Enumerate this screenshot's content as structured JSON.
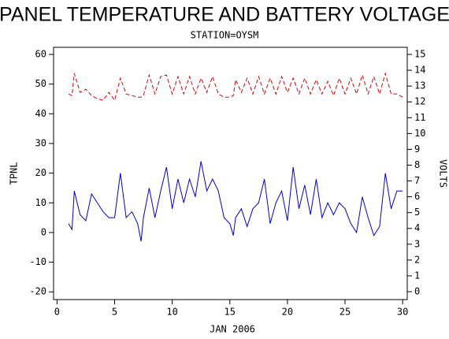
{
  "chart_data": {
    "type": "line",
    "title": "PANEL TEMPERATURE AND BATTERY VOLTAGE",
    "subtitle": "STATION=OYSM",
    "x_label": "JAN 2006",
    "y_label": "TPNL",
    "y2_label": "VOLTS",
    "x": [
      1,
      1.3,
      1.5,
      2,
      2.5,
      3,
      3.5,
      4,
      4.5,
      5,
      5.5,
      6,
      6.5,
      7,
      7.3,
      7.5,
      8,
      8.5,
      9,
      9.5,
      10,
      10.5,
      11,
      11.5,
      12,
      12.5,
      13,
      13.5,
      14,
      14.5,
      15,
      15.3,
      15.5,
      16,
      16.5,
      17,
      17.5,
      18,
      18.5,
      19,
      19.5,
      20,
      20.5,
      21,
      21.5,
      22,
      22.5,
      23,
      23.5,
      24,
      24.5,
      25,
      25.5,
      26,
      26.5,
      27,
      27.5,
      28,
      28.5,
      29,
      29.5,
      30
    ],
    "series": [
      {
        "name": "TPNL",
        "color": "#0000cc",
        "axis": "y",
        "values": [
          3,
          1,
          14,
          6,
          4,
          13,
          10,
          7,
          5,
          5,
          20,
          5,
          7,
          3,
          -3,
          5,
          15,
          5,
          14,
          22,
          8,
          18,
          10,
          18,
          12,
          24,
          14,
          18,
          14,
          5,
          3,
          -1,
          5,
          8,
          2,
          8,
          10,
          18,
          3,
          10,
          14,
          4,
          22,
          8,
          16,
          6,
          18,
          5,
          10,
          6,
          10,
          8,
          3,
          0,
          12,
          5,
          -1,
          2,
          20,
          8,
          14,
          14
        ]
      },
      {
        "name": "VOLTS",
        "color": "#dd0000",
        "axis": "y2",
        "dashed": true,
        "values": [
          12.5,
          12.4,
          13.8,
          12.6,
          12.8,
          12.4,
          12.2,
          12.1,
          12.6,
          12.1,
          13.5,
          12.5,
          12.4,
          12.3,
          12.3,
          12.4,
          13.7,
          12.5,
          13.6,
          13.7,
          12.5,
          13.6,
          12.5,
          13.6,
          12.5,
          13.5,
          12.6,
          13.6,
          12.5,
          12.3,
          12.3,
          12.4,
          13.4,
          12.6,
          13.5,
          12.5,
          13.6,
          12.5,
          13.5,
          12.5,
          13.6,
          12.6,
          13.5,
          12.5,
          13.5,
          12.5,
          13.4,
          12.5,
          13.3,
          12.4,
          13.5,
          12.5,
          13.5,
          12.5,
          13.7,
          12.5,
          13.6,
          12.5,
          13.8,
          12.5,
          12.5,
          12.3
        ]
      }
    ],
    "xlim": [
      -0.3,
      30.4
    ],
    "xticks": [
      0,
      5,
      10,
      15,
      20,
      25,
      30
    ],
    "ylim": [
      -22.6,
      62.4
    ],
    "yticks": [
      -20,
      -10,
      0,
      10,
      20,
      30,
      40,
      50,
      60
    ],
    "y2lim": [
      -0.5,
      15.45
    ],
    "y2ticks": [
      0,
      1,
      2,
      3,
      4,
      5,
      6,
      7,
      8,
      9,
      10,
      11,
      12,
      13,
      14,
      15
    ]
  }
}
